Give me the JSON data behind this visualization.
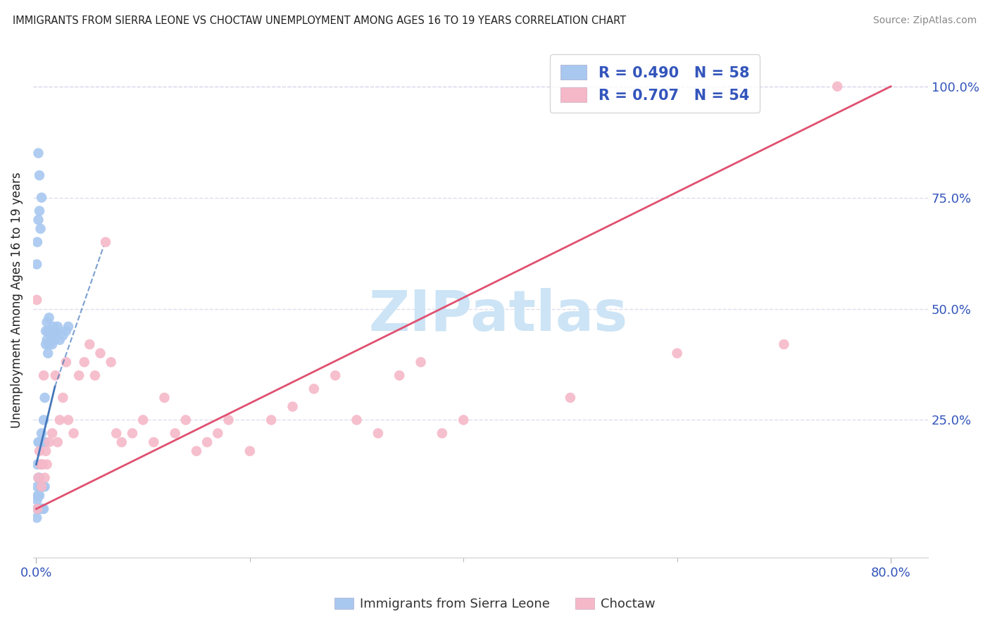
{
  "title": "IMMIGRANTS FROM SIERRA LEONE VS CHOCTAW UNEMPLOYMENT AMONG AGES 16 TO 19 YEARS CORRELATION CHART",
  "source": "Source: ZipAtlas.com",
  "ylabel": "Unemployment Among Ages 16 to 19 years",
  "blue_R": 0.49,
  "blue_N": 58,
  "pink_R": 0.707,
  "pink_N": 54,
  "blue_scatter_color": "#a8c8f0",
  "pink_scatter_color": "#f5b8c8",
  "blue_line_color": "#4477bb",
  "pink_line_color": "#e05070",
  "blue_scatter_x": [
    0.0005,
    0.0008,
    0.001,
    0.001,
    0.001,
    0.0015,
    0.002,
    0.002,
    0.002,
    0.002,
    0.003,
    0.003,
    0.003,
    0.003,
    0.004,
    0.004,
    0.004,
    0.005,
    0.005,
    0.005,
    0.005,
    0.006,
    0.006,
    0.006,
    0.007,
    0.007,
    0.007,
    0.008,
    0.008,
    0.008,
    0.009,
    0.009,
    0.01,
    0.01,
    0.011,
    0.011,
    0.012,
    0.012,
    0.013,
    0.014,
    0.015,
    0.016,
    0.017,
    0.018,
    0.019,
    0.02,
    0.022,
    0.025,
    0.028,
    0.03,
    0.0005,
    0.001,
    0.002,
    0.003,
    0.004,
    0.005,
    0.003,
    0.002
  ],
  "blue_scatter_y": [
    0.03,
    0.07,
    0.05,
    0.1,
    0.15,
    0.08,
    0.05,
    0.08,
    0.12,
    0.2,
    0.05,
    0.08,
    0.12,
    0.2,
    0.05,
    0.1,
    0.2,
    0.05,
    0.1,
    0.15,
    0.22,
    0.05,
    0.1,
    0.2,
    0.05,
    0.1,
    0.25,
    0.1,
    0.2,
    0.3,
    0.42,
    0.45,
    0.43,
    0.47,
    0.4,
    0.45,
    0.42,
    0.48,
    0.45,
    0.43,
    0.42,
    0.46,
    0.43,
    0.44,
    0.45,
    0.46,
    0.43,
    0.44,
    0.45,
    0.46,
    0.6,
    0.65,
    0.7,
    0.72,
    0.68,
    0.75,
    0.8,
    0.85
  ],
  "pink_scatter_x": [
    0.0005,
    0.001,
    0.002,
    0.003,
    0.004,
    0.005,
    0.006,
    0.007,
    0.008,
    0.009,
    0.01,
    0.012,
    0.015,
    0.018,
    0.02,
    0.022,
    0.025,
    0.028,
    0.03,
    0.035,
    0.04,
    0.045,
    0.05,
    0.055,
    0.06,
    0.065,
    0.07,
    0.075,
    0.08,
    0.09,
    0.1,
    0.11,
    0.12,
    0.13,
    0.14,
    0.15,
    0.16,
    0.17,
    0.18,
    0.2,
    0.22,
    0.24,
    0.26,
    0.28,
    0.3,
    0.32,
    0.34,
    0.36,
    0.38,
    0.4,
    0.5,
    0.6,
    0.7,
    0.75
  ],
  "pink_scatter_y": [
    0.52,
    0.05,
    0.12,
    0.18,
    0.15,
    0.1,
    0.15,
    0.35,
    0.12,
    0.18,
    0.15,
    0.2,
    0.22,
    0.35,
    0.2,
    0.25,
    0.3,
    0.38,
    0.25,
    0.22,
    0.35,
    0.38,
    0.42,
    0.35,
    0.4,
    0.65,
    0.38,
    0.22,
    0.2,
    0.22,
    0.25,
    0.2,
    0.3,
    0.22,
    0.25,
    0.18,
    0.2,
    0.22,
    0.25,
    0.18,
    0.25,
    0.28,
    0.32,
    0.35,
    0.25,
    0.22,
    0.35,
    0.38,
    0.22,
    0.25,
    0.3,
    0.4,
    0.42,
    1.0
  ],
  "blue_line_x1": 0.0,
  "blue_line_x2": 0.035,
  "blue_line_y1": 0.15,
  "blue_line_y2": 0.5,
  "pink_line_x1": 0.0,
  "pink_line_x2": 0.8,
  "pink_line_y1": 0.05,
  "pink_line_y2": 1.0,
  "xmin": -0.003,
  "xmax": 0.835,
  "ymin": -0.06,
  "ymax": 1.1,
  "watermark": "ZIPatlas",
  "watermark_color": "#cce4f5",
  "background_color": "#ffffff",
  "grid_color": "#ddddee",
  "title_color": "#222222",
  "right_label_color": "#3355bb",
  "bottom_label_color": "#3355bb",
  "legend_text_color": "#3355bb"
}
